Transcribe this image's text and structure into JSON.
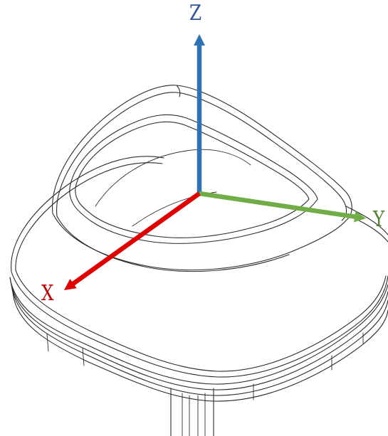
{
  "axes": {
    "z": {
      "label": "Z",
      "color": "#2f5597"
    },
    "y": {
      "label": "Y",
      "color": "#548235"
    },
    "x": {
      "label": "X",
      "color": "#c00000"
    }
  },
  "arrow_colors": {
    "z": "#2e74b5",
    "y": "#70ad47",
    "x": "#e00000"
  }
}
